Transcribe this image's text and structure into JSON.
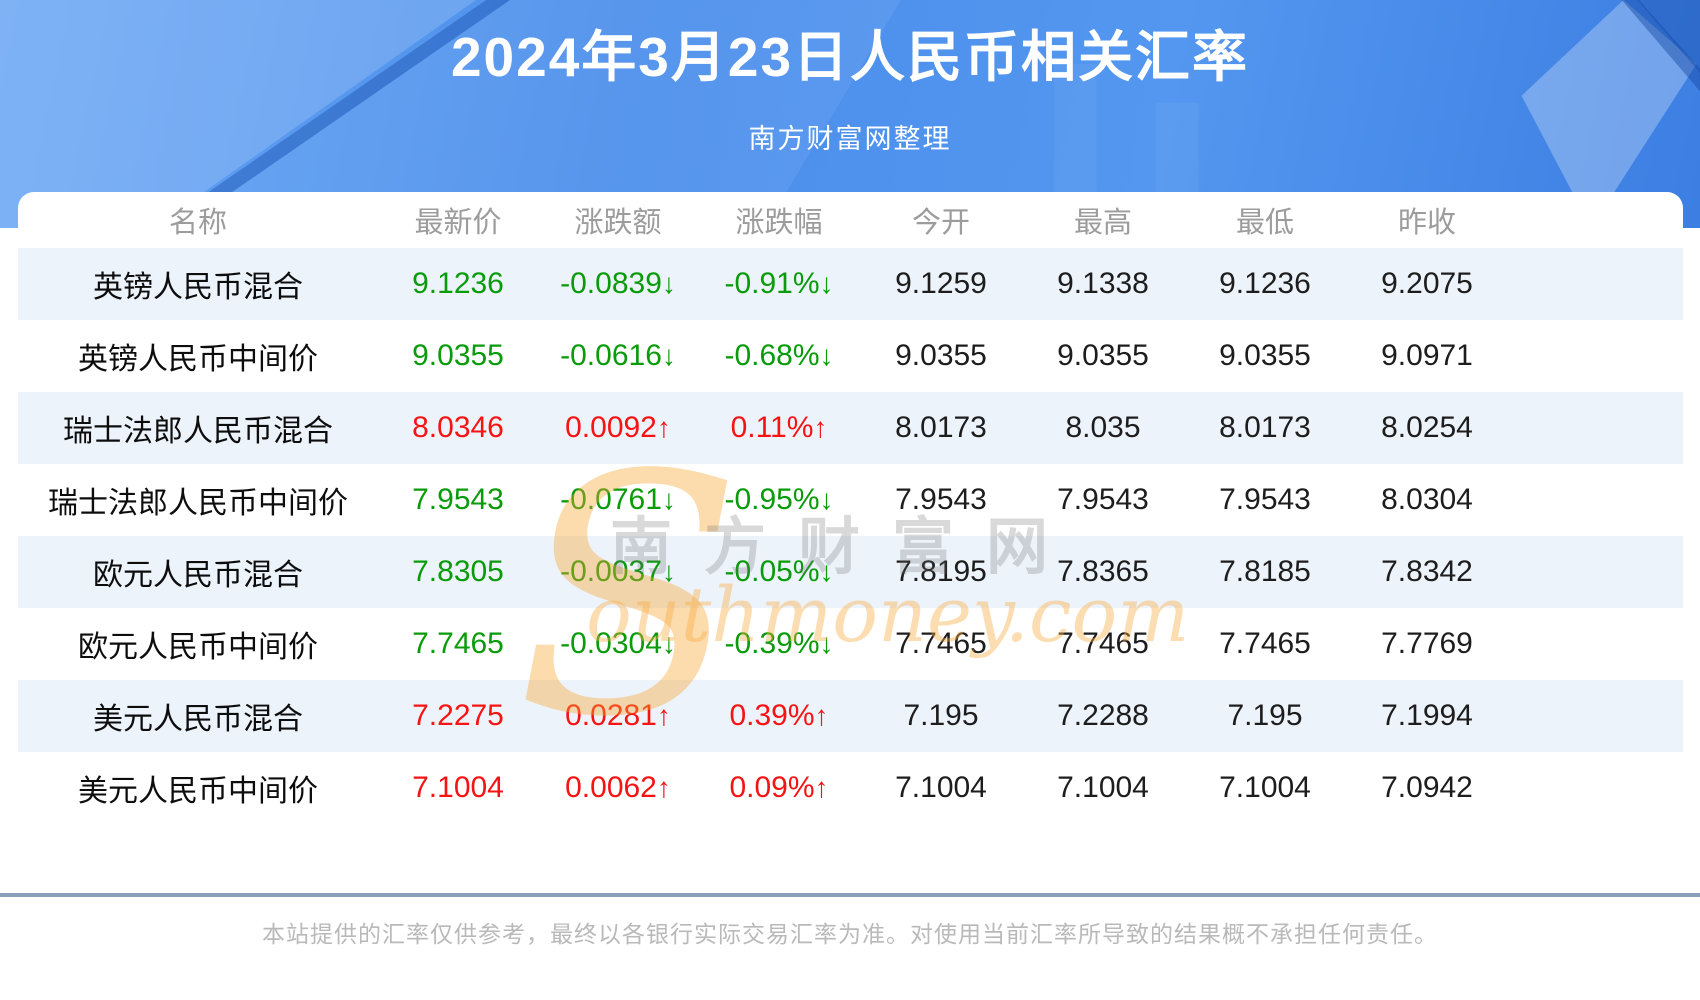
{
  "header": {
    "title": "2024年3月23日人民币相关汇率",
    "subtitle": "南方财富网整理"
  },
  "watermark": {
    "swoosh_glyph": "S",
    "cn_text": "南方财富网",
    "en_text": "outhmoney.com"
  },
  "table": {
    "columns": [
      {
        "key": "name",
        "label": "名称"
      },
      {
        "key": "latest",
        "label": "最新价"
      },
      {
        "key": "change",
        "label": "涨跌额"
      },
      {
        "key": "change_pct",
        "label": "涨跌幅"
      },
      {
        "key": "open",
        "label": "今开"
      },
      {
        "key": "high",
        "label": "最高"
      },
      {
        "key": "low",
        "label": "最低"
      },
      {
        "key": "prev_close",
        "label": "昨收"
      }
    ],
    "rows": [
      {
        "name": "英镑人民币混合",
        "latest": "9.1236",
        "change": "-0.0839",
        "change_pct": "-0.91%",
        "direction": "down",
        "open": "9.1259",
        "high": "9.1338",
        "low": "9.1236",
        "prev_close": "9.2075"
      },
      {
        "name": "英镑人民币中间价",
        "latest": "9.0355",
        "change": "-0.0616",
        "change_pct": "-0.68%",
        "direction": "down",
        "open": "9.0355",
        "high": "9.0355",
        "low": "9.0355",
        "prev_close": "9.0971"
      },
      {
        "name": "瑞士法郎人民币混合",
        "latest": "8.0346",
        "change": "0.0092",
        "change_pct": "0.11%",
        "direction": "up",
        "open": "8.0173",
        "high": "8.035",
        "low": "8.0173",
        "prev_close": "8.0254"
      },
      {
        "name": "瑞士法郎人民币中间价",
        "latest": "7.9543",
        "change": "-0.0761",
        "change_pct": "-0.95%",
        "direction": "down",
        "open": "7.9543",
        "high": "7.9543",
        "low": "7.9543",
        "prev_close": "8.0304"
      },
      {
        "name": "欧元人民币混合",
        "latest": "7.8305",
        "change": "-0.0037",
        "change_pct": "-0.05%",
        "direction": "down",
        "open": "7.8195",
        "high": "7.8365",
        "low": "7.8185",
        "prev_close": "7.8342"
      },
      {
        "name": "欧元人民币中间价",
        "latest": "7.7465",
        "change": "-0.0304",
        "change_pct": "-0.39%",
        "direction": "down",
        "open": "7.7465",
        "high": "7.7465",
        "low": "7.7465",
        "prev_close": "7.7769"
      },
      {
        "name": "美元人民币混合",
        "latest": "7.2275",
        "change": "0.0281",
        "change_pct": "0.39%",
        "direction": "up",
        "open": "7.195",
        "high": "7.2288",
        "low": "7.195",
        "prev_close": "7.1994"
      },
      {
        "name": "美元人民币中间价",
        "latest": "7.1004",
        "change": "0.0062",
        "change_pct": "0.09%",
        "direction": "up",
        "open": "7.1004",
        "high": "7.1004",
        "low": "7.1004",
        "prev_close": "7.0942"
      }
    ]
  },
  "icons": {
    "up_arrow": "↑",
    "down_arrow": "↓"
  },
  "colors": {
    "up": "#f61313",
    "down": "#0a9b0b",
    "neutral": "#1d1d1d",
    "header_text": "#9c9c9c",
    "stripe": "#edf3fb",
    "divider": "#8b9eba"
  },
  "footer": {
    "disclaimer": "本站提供的汇率仅供参考，最终以各银行实际交易汇率为准。对使用当前汇率所导致的结果概不承担任何责任。"
  }
}
